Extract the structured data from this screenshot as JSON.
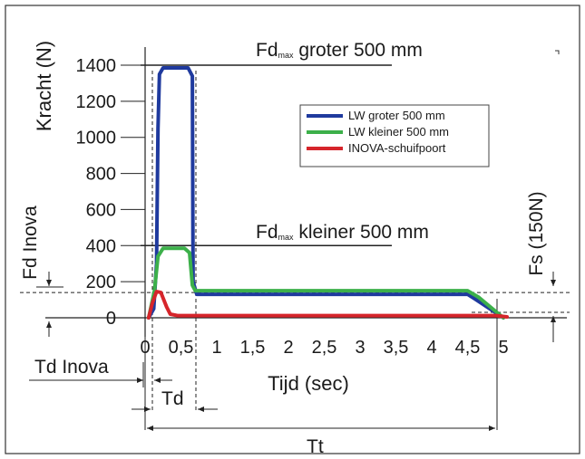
{
  "chart_data": {
    "type": "line",
    "title": "",
    "xlabel": "Tijd (sec)",
    "ylabel": "Kracht (N)",
    "xlim": [
      0,
      5
    ],
    "ylim": [
      0,
      1400
    ],
    "x_ticks": [
      "0",
      "0,5",
      "1",
      "1,5",
      "2",
      "2,5",
      "3",
      "3,5",
      "4",
      "4,5",
      "5"
    ],
    "y_ticks": [
      "0",
      "200",
      "400",
      "600",
      "800",
      "1000",
      "1200",
      "1400"
    ],
    "legend_position": "top-right",
    "series": [
      {
        "name": "LW groter 500 mm",
        "color": "#1f3a9e",
        "points": [
          [
            0.05,
            0
          ],
          [
            0.12,
            50
          ],
          [
            0.16,
            300
          ],
          [
            0.18,
            1050
          ],
          [
            0.2,
            1350
          ],
          [
            0.25,
            1385
          ],
          [
            0.6,
            1385
          ],
          [
            0.66,
            1340
          ],
          [
            0.67,
            200
          ],
          [
            0.72,
            130
          ],
          [
            0.8,
            130
          ],
          [
            4.5,
            130
          ],
          [
            4.6,
            105
          ],
          [
            5,
            0
          ]
        ]
      },
      {
        "name": "LW kleiner 500 mm",
        "color": "#3cb04a",
        "points": [
          [
            0.05,
            0
          ],
          [
            0.13,
            150
          ],
          [
            0.18,
            340
          ],
          [
            0.25,
            385
          ],
          [
            0.55,
            385
          ],
          [
            0.62,
            360
          ],
          [
            0.66,
            180
          ],
          [
            0.7,
            150
          ],
          [
            0.8,
            150
          ],
          [
            4.5,
            150
          ],
          [
            4.65,
            115
          ],
          [
            5,
            0
          ]
        ]
      },
      {
        "name": "INOVA-schuifpoort",
        "color": "#d6252b",
        "points": [
          [
            0.05,
            0
          ],
          [
            0.1,
            80
          ],
          [
            0.16,
            145
          ],
          [
            0.22,
            140
          ],
          [
            0.3,
            60
          ],
          [
            0.35,
            20
          ],
          [
            0.45,
            12
          ],
          [
            4.9,
            12
          ],
          [
            5.05,
            5
          ]
        ]
      }
    ],
    "annotations": {
      "fd_max_groter": {
        "prefix": "Fd",
        "sub": "max",
        "suffix": " groter 500 mm",
        "y": 1400
      },
      "fd_max_kleiner": {
        "prefix": "Fd",
        "sub": "max",
        "suffix": " kleiner 500 mm",
        "y": 400
      },
      "fd_inova": "Fd Inova",
      "fs": "Fs (150N)",
      "td_inova": "Td Inova",
      "td": "Td",
      "tt": "Tt"
    }
  }
}
